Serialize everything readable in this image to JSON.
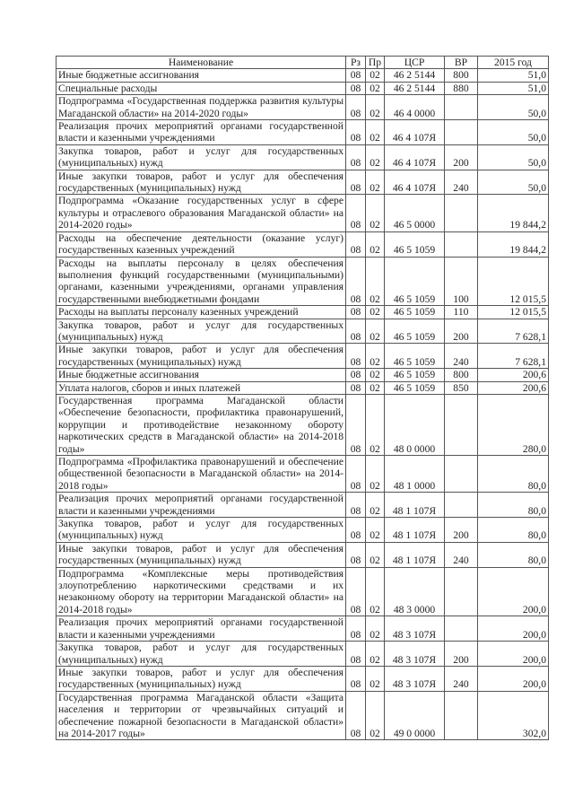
{
  "headers": [
    "Наименование",
    "Рз",
    "Пр",
    "ЦСР",
    "ВР",
    "2015 год"
  ],
  "rows": [
    {
      "name": "Иные бюджетные ассигнования",
      "rz": "08",
      "pr": "02",
      "csr": "46 2 5144",
      "vr": "800",
      "amount": "51,0"
    },
    {
      "name": "Специальные расходы",
      "rz": "08",
      "pr": "02",
      "csr": "46 2 5144",
      "vr": "880",
      "amount": "51,0"
    },
    {
      "name": "Подпрограмма «Государственная поддержка развития культуры Магаданской области» на 2014-2020 годы»",
      "rz": "08",
      "pr": "02",
      "csr": "46 4 0000",
      "vr": "",
      "amount": "50,0"
    },
    {
      "name": "Реализация прочих мероприятий органами государственной власти и казенными учреждениями",
      "rz": "08",
      "pr": "02",
      "csr": "46 4 107Я",
      "vr": "",
      "amount": "50,0"
    },
    {
      "name": "Закупка товаров, работ и услуг для государственных (муниципальных) нужд",
      "rz": "08",
      "pr": "02",
      "csr": "46 4 107Я",
      "vr": "200",
      "amount": "50,0"
    },
    {
      "name": "Иные закупки товаров, работ и услуг для обеспечения государственных (муниципальных) нужд",
      "rz": "08",
      "pr": "02",
      "csr": "46 4 107Я",
      "vr": "240",
      "amount": "50,0"
    },
    {
      "name": "Подпрограмма «Оказание государственных услуг в сфере культуры и отраслевого образования Магаданской области» на 2014-2020 годы»",
      "rz": "08",
      "pr": "02",
      "csr": "46 5 0000",
      "vr": "",
      "amount": "19 844,2"
    },
    {
      "name": "Расходы на обеспечение деятельности (оказание услуг) государственных казенных учреждений",
      "rz": "08",
      "pr": "02",
      "csr": "46 5 1059",
      "vr": "",
      "amount": "19 844,2"
    },
    {
      "name": "Расходы на выплаты персоналу в целях обеспечения выполнения функций государственными (муниципальными) органами, казенными учреждениями, органами управления государственными внебюджетными фондами",
      "rz": "08",
      "pr": "02",
      "csr": "46 5 1059",
      "vr": "100",
      "amount": "12 015,5"
    },
    {
      "name": "Расходы на выплаты персоналу казенных учреждений",
      "rz": "08",
      "pr": "02",
      "csr": "46 5 1059",
      "vr": "110",
      "amount": "12 015,5"
    },
    {
      "name": "Закупка товаров, работ и услуг для государственных (муниципальных) нужд",
      "rz": "08",
      "pr": "02",
      "csr": "46 5 1059",
      "vr": "200",
      "amount": "7 628,1"
    },
    {
      "name": "Иные закупки товаров, работ и услуг для обеспечения государственных (муниципальных) нужд",
      "rz": "08",
      "pr": "02",
      "csr": "46 5 1059",
      "vr": "240",
      "amount": "7 628,1"
    },
    {
      "name": "Иные бюджетные ассигнования",
      "rz": "08",
      "pr": "02",
      "csr": "46 5 1059",
      "vr": "800",
      "amount": "200,6"
    },
    {
      "name": "Уплата налогов, сборов и иных платежей",
      "rz": "08",
      "pr": "02",
      "csr": "46 5 1059",
      "vr": "850",
      "amount": "200,6"
    },
    {
      "name": "Государственная программа Магаданской области «Обеспечение безопасности, профилактика правонарушений, коррупции и противодействие незаконному обороту наркотических средств в Магаданской области» на 2014-2018 годы»",
      "rz": "08",
      "pr": "02",
      "csr": "48 0 0000",
      "vr": "",
      "amount": "280,0"
    },
    {
      "name": "Подпрограмма «Профилактика правонарушений и обеспечение общественной безопасности в Магаданской области» на 2014-2018 годы»",
      "rz": "08",
      "pr": "02",
      "csr": "48 1 0000",
      "vr": "",
      "amount": "80,0"
    },
    {
      "name": "Реализация прочих мероприятий органами государственной власти и казенными учреждениями",
      "rz": "08",
      "pr": "02",
      "csr": "48 1 107Я",
      "vr": "",
      "amount": "80,0"
    },
    {
      "name": "Закупка товаров, работ и услуг для государственных (муниципальных) нужд",
      "rz": "08",
      "pr": "02",
      "csr": "48 1 107Я",
      "vr": "200",
      "amount": "80,0"
    },
    {
      "name": "Иные закупки товаров, работ и услуг для обеспечения государственных (муниципальных) нужд",
      "rz": "08",
      "pr": "02",
      "csr": "48 1 107Я",
      "vr": "240",
      "amount": "80,0"
    },
    {
      "name": "Подпрограмма «Комплексные меры противодействия злоупотреблению наркотическими средствами и их незаконному обороту на территории Магаданской области» на 2014-2018 годы»",
      "rz": "08",
      "pr": "02",
      "csr": "48 3 0000",
      "vr": "",
      "amount": "200,0"
    },
    {
      "name": "Реализация прочих мероприятий органами государственной власти и казенными учреждениями",
      "rz": "08",
      "pr": "02",
      "csr": "48 3 107Я",
      "vr": "",
      "amount": "200,0"
    },
    {
      "name": "Закупка товаров, работ и услуг для государственных (муниципальных) нужд",
      "rz": "08",
      "pr": "02",
      "csr": "48 3 107Я",
      "vr": "200",
      "amount": "200,0"
    },
    {
      "name": "Иные закупки товаров, работ и услуг для обеспечения государственных (муниципальных) нужд",
      "rz": "08",
      "pr": "02",
      "csr": "48 3 107Я",
      "vr": "240",
      "amount": "200,0"
    },
    {
      "name": "Государственная программа Магаданской области «Защита населения и территории от чрезвычайных ситуаций и обеспечение пожарной безопасности в Магаданской области» на 2014-2017 годы»",
      "rz": "08",
      "pr": "02",
      "csr": "49 0 0000",
      "vr": "",
      "amount": "302,0"
    }
  ]
}
